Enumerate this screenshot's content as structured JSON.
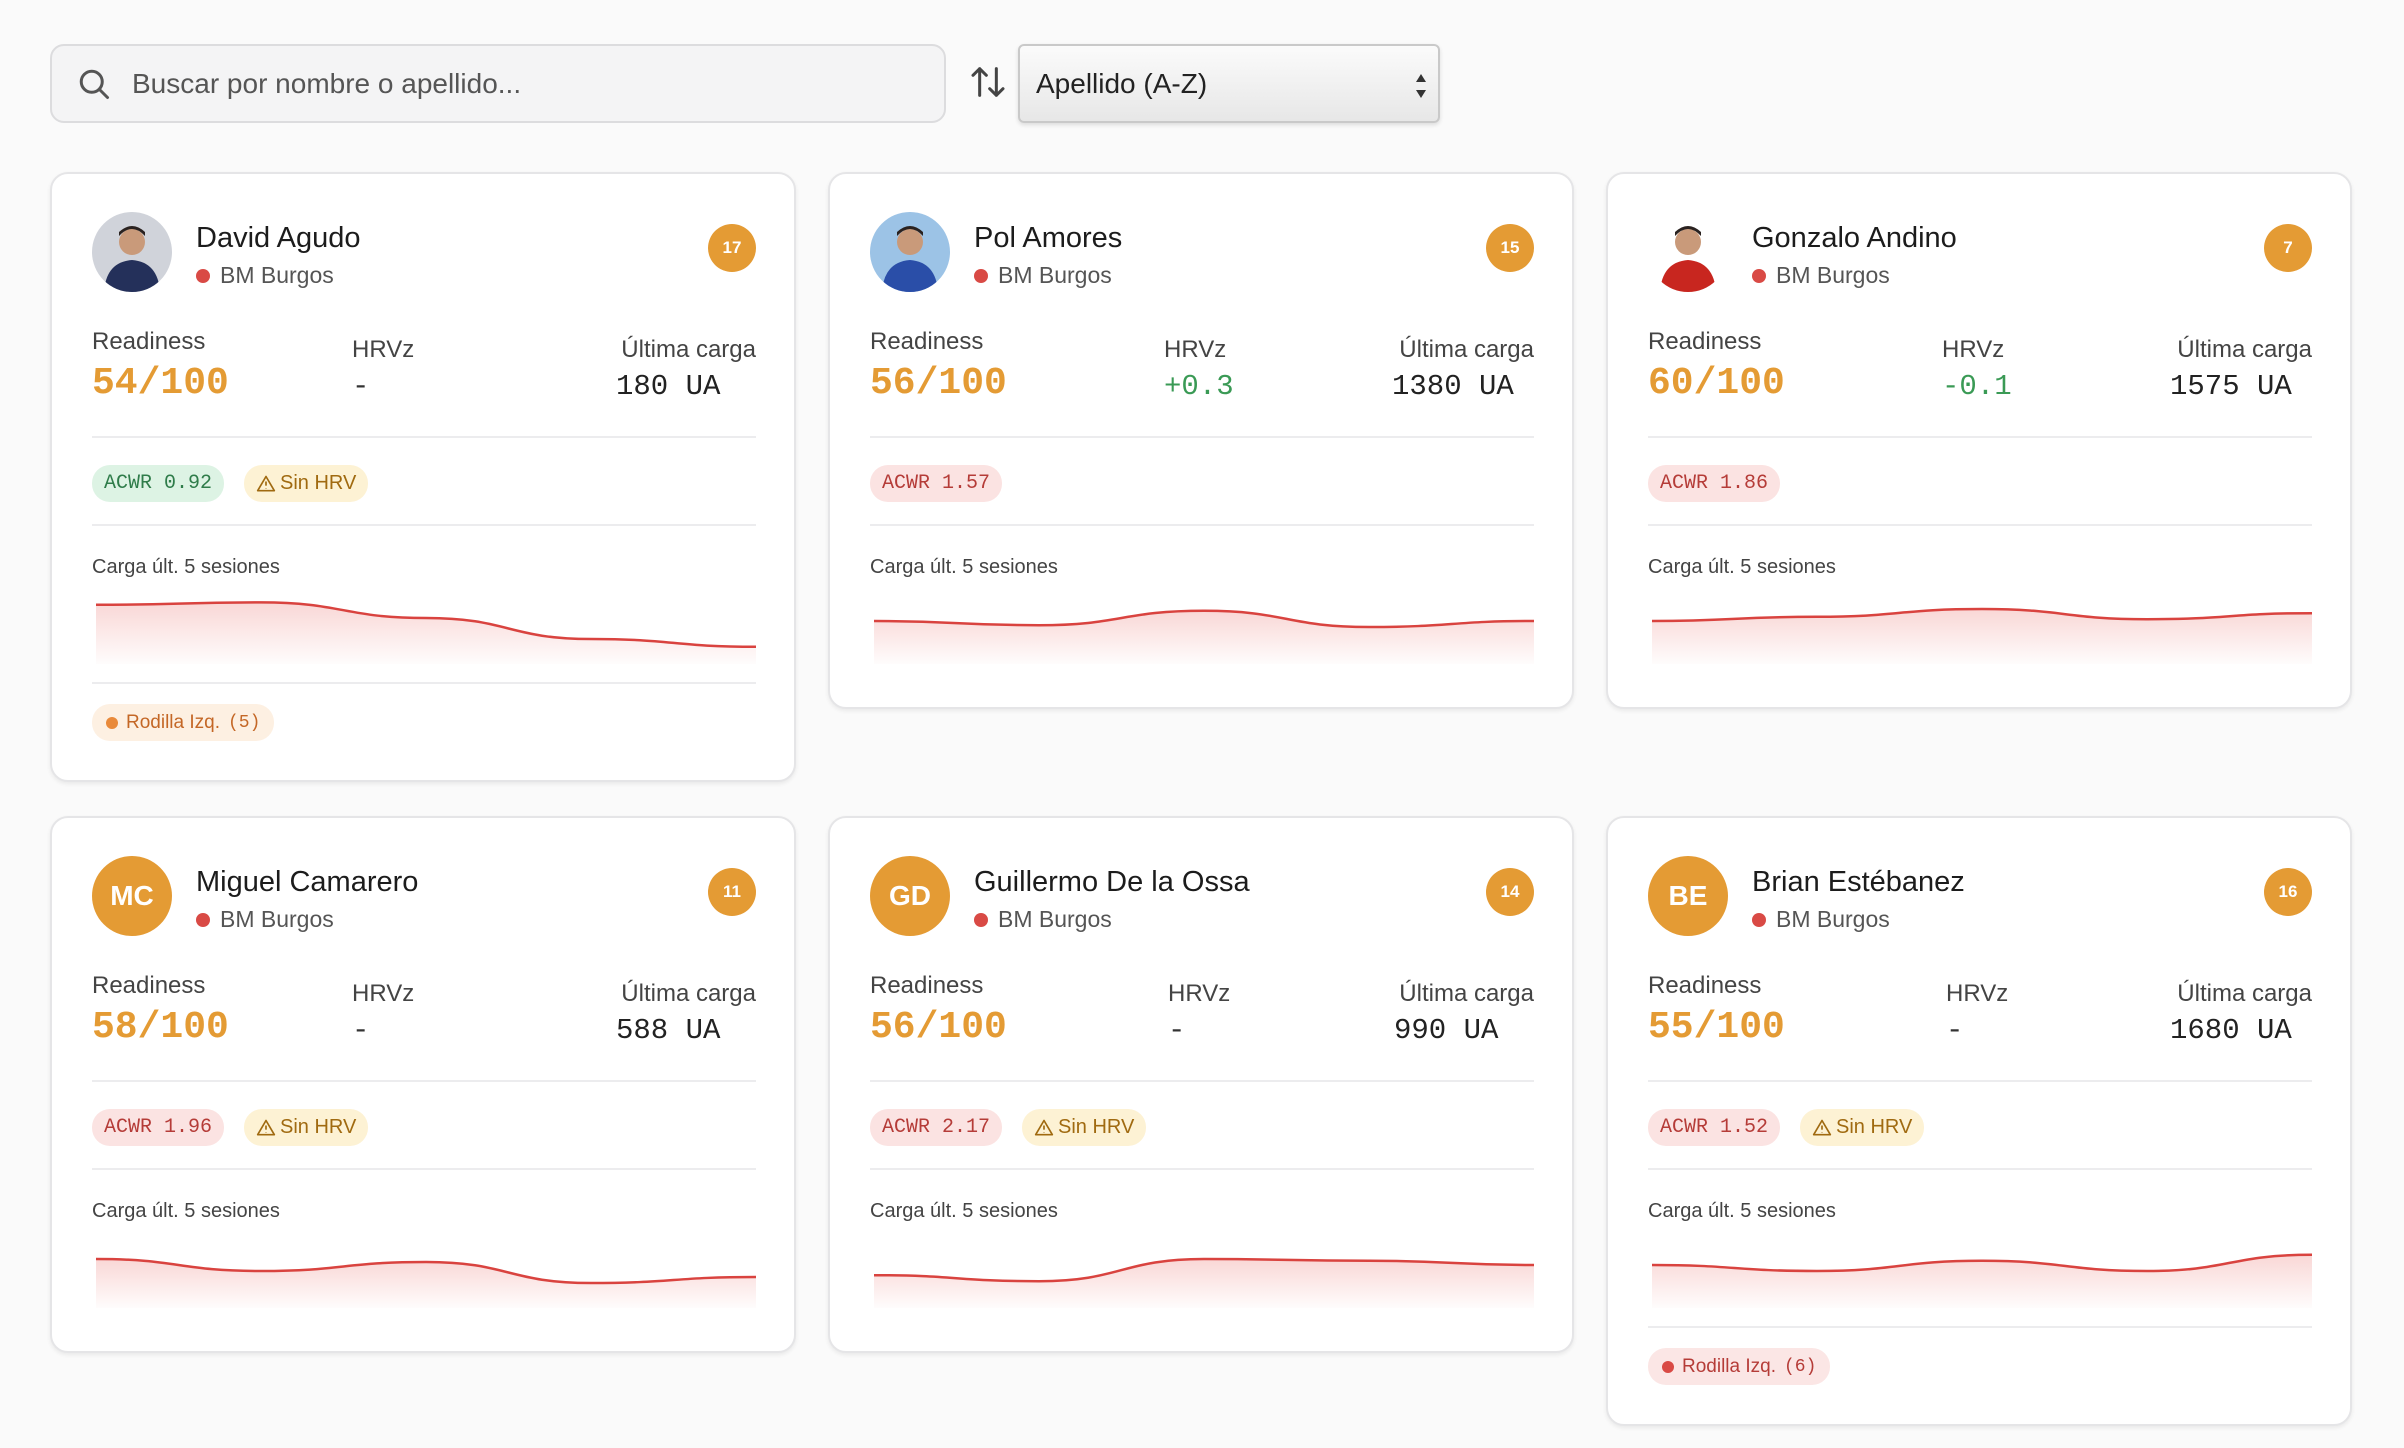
{
  "toolbar": {
    "search_placeholder": "Buscar por nombre o apellido...",
    "sort_selected": "Apellido (A-Z)"
  },
  "labels": {
    "readiness": "Readiness",
    "hrvz": "HRVz",
    "last_load": "Última carga",
    "chart": "Carga últ. 5 sesiones",
    "no_hrv": "Sin HRV"
  },
  "colors": {
    "accent": "#e49b34",
    "team_dot": "#d94a45",
    "positive": "#3a9a55",
    "chart_line": "#d9433f"
  },
  "players": [
    {
      "name": "David Agudo",
      "team": "BM Burgos",
      "number": "17",
      "avatar": {
        "type": "photo",
        "kit": "navy"
      },
      "readiness": "54/100",
      "hrvz": "-",
      "hrv_positive": false,
      "last_load": "180 UA",
      "acwr": "ACWR 0.92",
      "acwr_status": "good",
      "no_hrv": true,
      "chart_data": {
        "type": "area",
        "x": [
          1,
          2,
          3,
          4,
          5
        ],
        "values": [
          0.82,
          0.86,
          0.6,
          0.25,
          0.12
        ]
      },
      "injury": {
        "label": "Rodilla Izq.",
        "count": "(5)",
        "tone": "orange"
      }
    },
    {
      "name": "Pol Amores",
      "team": "BM Burgos",
      "number": "15",
      "avatar": {
        "type": "photo",
        "kit": "blue"
      },
      "readiness": "56/100",
      "hrvz": "+0.3",
      "hrv_positive": true,
      "last_load": "1380 UA",
      "acwr": "ACWR 1.57",
      "acwr_status": "bad",
      "no_hrv": false,
      "chart_data": {
        "type": "area",
        "x": [
          1,
          2,
          3,
          4,
          5
        ],
        "values": [
          0.55,
          0.48,
          0.72,
          0.45,
          0.55
        ]
      },
      "injury": null
    },
    {
      "name": "Gonzalo Andino",
      "team": "BM Burgos",
      "number": "7",
      "avatar": {
        "type": "photo",
        "kit": "red"
      },
      "readiness": "60/100",
      "hrvz": "-0.1",
      "hrv_positive": true,
      "last_load": "1575 UA",
      "acwr": "ACWR 1.86",
      "acwr_status": "bad",
      "no_hrv": false,
      "chart_data": {
        "type": "area",
        "x": [
          1,
          2,
          3,
          4,
          5
        ],
        "values": [
          0.55,
          0.62,
          0.75,
          0.58,
          0.68
        ]
      },
      "injury": null
    },
    {
      "name": "Miguel Camarero",
      "team": "BM Burgos",
      "number": "11",
      "avatar": {
        "type": "initials",
        "initials": "MC"
      },
      "readiness": "58/100",
      "hrvz": "-",
      "hrv_positive": false,
      "last_load": "588 UA",
      "acwr": "ACWR 1.96",
      "acwr_status": "bad",
      "no_hrv": true,
      "chart_data": {
        "type": "area",
        "x": [
          1,
          2,
          3,
          4,
          5
        ],
        "values": [
          0.65,
          0.45,
          0.6,
          0.25,
          0.35
        ]
      },
      "injury": null
    },
    {
      "name": "Guillermo De la Ossa",
      "team": "BM Burgos",
      "number": "14",
      "avatar": {
        "type": "initials",
        "initials": "GD"
      },
      "readiness": "56/100",
      "hrvz": "-",
      "hrv_positive": false,
      "last_load": "990 UA",
      "acwr": "ACWR 2.17",
      "acwr_status": "bad",
      "no_hrv": true,
      "chart_data": {
        "type": "area",
        "x": [
          1,
          2,
          3,
          4,
          5
        ],
        "values": [
          0.38,
          0.28,
          0.65,
          0.62,
          0.55
        ]
      },
      "injury": null
    },
    {
      "name": "Brian Estébanez",
      "team": "BM Burgos",
      "number": "16",
      "avatar": {
        "type": "initials",
        "initials": "BE"
      },
      "readiness": "55/100",
      "hrvz": "-",
      "hrv_positive": false,
      "last_load": "1680 UA",
      "acwr": "ACWR 1.52",
      "acwr_status": "bad",
      "no_hrv": true,
      "chart_data": {
        "type": "area",
        "x": [
          1,
          2,
          3,
          4,
          5
        ],
        "values": [
          0.55,
          0.45,
          0.62,
          0.45,
          0.72
        ]
      },
      "injury": {
        "label": "Rodilla Izq.",
        "count": "(6)",
        "tone": "red"
      }
    }
  ]
}
